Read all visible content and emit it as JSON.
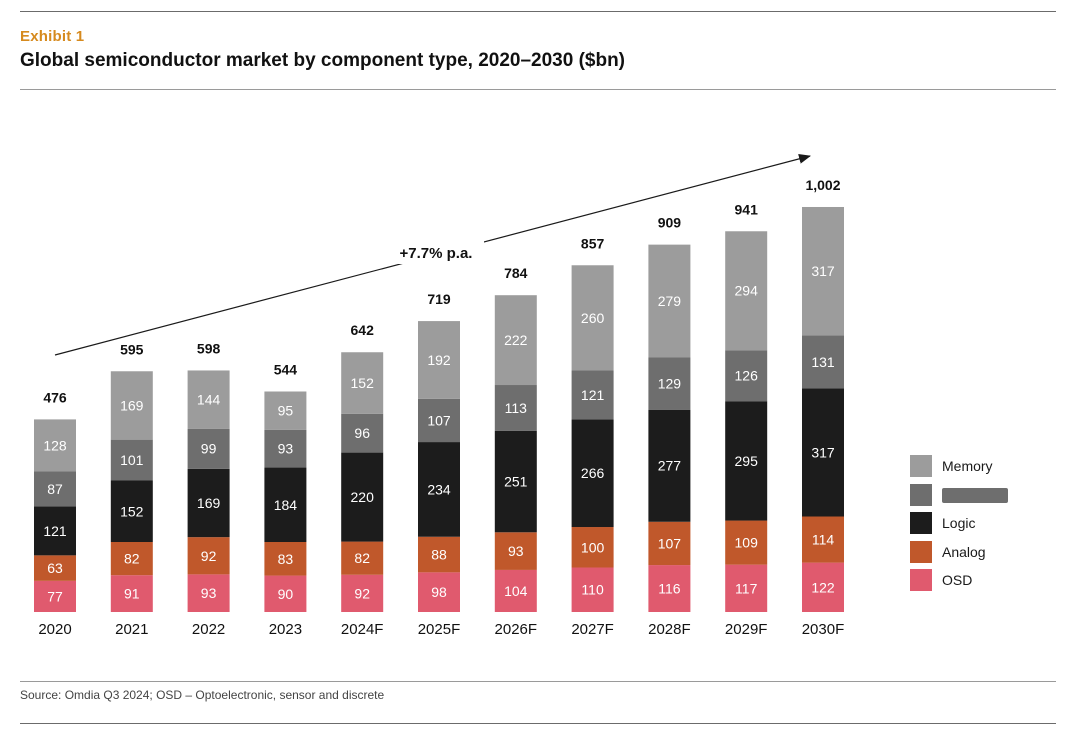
{
  "header": {
    "exhibit": "Exhibit  1",
    "title": "Global semiconductor market by component type, 2020–2030 ($bn)"
  },
  "footer": {
    "source": "Source: Omdia Q3 2024; OSD – Optoelectronic, sensor and discrete"
  },
  "chart_data": {
    "type": "bar",
    "stacked": true,
    "title": "Global semiconductor market by component type, 2020–2030 ($bn)",
    "categories": [
      "2020",
      "2021",
      "2022",
      "2023",
      "2024F",
      "2025F",
      "2026F",
      "2027F",
      "2028F",
      "2029F",
      "2030F"
    ],
    "totals": [
      "476",
      "595",
      "598",
      "544",
      "642",
      "719",
      "784",
      "857",
      "909",
      "941",
      "1,002"
    ],
    "series": [
      {
        "name": "OSD",
        "color": "#e05a6e",
        "label_color": "#ffffff",
        "values": [
          77,
          91,
          93,
          90,
          92,
          98,
          104,
          110,
          116,
          117,
          122
        ]
      },
      {
        "name": "Analog",
        "color": "#c0582b",
        "label_color": "#ffffff",
        "values": [
          63,
          82,
          92,
          83,
          82,
          88,
          93,
          100,
          107,
          109,
          114
        ]
      },
      {
        "name": "Logic",
        "color": "#1c1c1c",
        "label_color": "#ffffff",
        "values": [
          121,
          152,
          169,
          184,
          220,
          234,
          251,
          266,
          277,
          295,
          317
        ]
      },
      {
        "name": "",
        "color": "#6e6e6e",
        "label_color": "#ffffff",
        "values": [
          87,
          101,
          99,
          93,
          96,
          107,
          113,
          121,
          129,
          126,
          131
        ]
      },
      {
        "name": "Memory",
        "color": "#9c9c9c",
        "label_color": "#ffffff",
        "values": [
          128,
          169,
          144,
          95,
          152,
          192,
          222,
          260,
          279,
          294,
          317
        ]
      }
    ],
    "annotation": "+7.7% p.a.",
    "legend": [
      {
        "name": "Memory",
        "color": "#9c9c9c"
      },
      {
        "name": "",
        "color": "#6e6e6e",
        "redacted": true
      },
      {
        "name": "Logic",
        "color": "#1c1c1c"
      },
      {
        "name": "Analog",
        "color": "#c0582b"
      },
      {
        "name": "OSD",
        "color": "#e05a6e"
      }
    ],
    "legend_position": "right",
    "ylim": [
      0,
      1002
    ],
    "xlabel": "",
    "ylabel": ""
  }
}
